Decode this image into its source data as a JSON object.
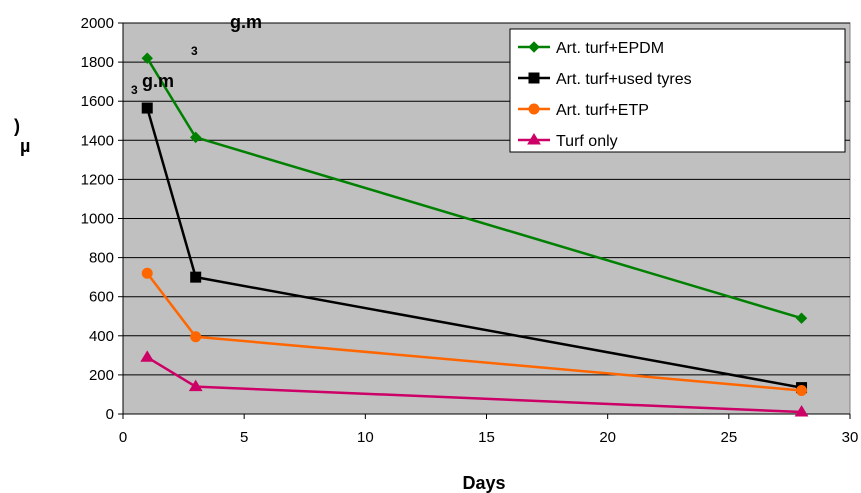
{
  "chart_data": {
    "type": "line",
    "xlabel": "Days",
    "ylabel_fragments": [
      "µ",
      ")"
    ],
    "xlim": [
      0,
      30
    ],
    "ylim": [
      0,
      2000
    ],
    "xticks": [
      0,
      5,
      10,
      15,
      20,
      25,
      30
    ],
    "yticks": [
      0,
      200,
      400,
      600,
      800,
      1000,
      1200,
      1400,
      1600,
      1800,
      2000
    ],
    "grid": "horizontal",
    "plot_background": "#c0c0c0",
    "legend_position": "top-right",
    "annotations": [
      {
        "text": "g.m",
        "sup": "3"
      },
      {
        "text": "g.m",
        "sup": "3"
      }
    ],
    "series": [
      {
        "name": "Art. turf+EPDM",
        "color": "#008000",
        "marker": "diamond",
        "x": [
          1,
          3,
          28
        ],
        "y": [
          1820,
          1415,
          490
        ]
      },
      {
        "name": "Art. turf+used tyres",
        "color": "#000000",
        "marker": "square",
        "x": [
          1,
          3,
          28
        ],
        "y": [
          1565,
          700,
          135
        ]
      },
      {
        "name": "Art. turf+ETP",
        "color": "#ff6600",
        "marker": "circle",
        "x": [
          1,
          3,
          28
        ],
        "y": [
          720,
          395,
          120
        ]
      },
      {
        "name": "Turf only",
        "color": "#cc0066",
        "marker": "triangle",
        "x": [
          1,
          3,
          28
        ],
        "y": [
          290,
          140,
          10
        ]
      }
    ]
  }
}
